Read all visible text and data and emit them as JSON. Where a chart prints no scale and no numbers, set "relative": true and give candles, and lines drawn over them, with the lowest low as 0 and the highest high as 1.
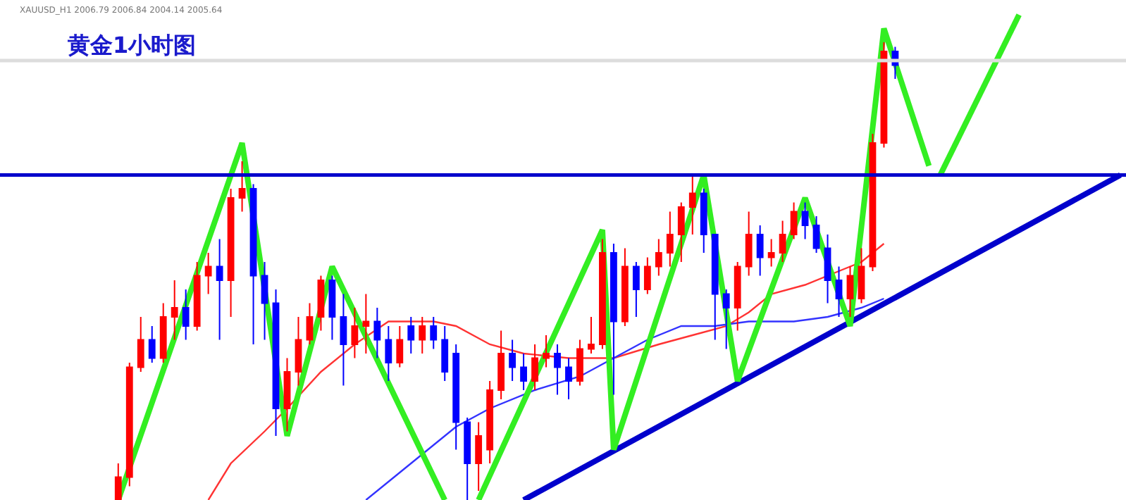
{
  "chart_data": {
    "type": "candlestick",
    "title": "黄金1小时图",
    "annotations": [
      "XAUUSD_H1 2006.79 2006.84 2004.14 2005.64"
    ],
    "relative": true,
    "categories": [
      null,
      null,
      null,
      null,
      null,
      null,
      null,
      null,
      null,
      null,
      null,
      null,
      null,
      null,
      null,
      null,
      null,
      null,
      null,
      null,
      null,
      null,
      null,
      null,
      null,
      null,
      null,
      null,
      null,
      null,
      null,
      null,
      null,
      null,
      null,
      null,
      null,
      null,
      null,
      null,
      null,
      null,
      null,
      null,
      null,
      null,
      null,
      null,
      null,
      null,
      null,
      null,
      null,
      null,
      null,
      null,
      null,
      null,
      null,
      null,
      null,
      null,
      null,
      null,
      null,
      null,
      null,
      null,
      null,
      null,
      null,
      null,
      null,
      null,
      null,
      null,
      null,
      null,
      null,
      null,
      null,
      null,
      null,
      null,
      null,
      null,
      null,
      null,
      null,
      null,
      null,
      null,
      null,
      null,
      null,
      null,
      null,
      null,
      null,
      null
    ],
    "colors": [
      null,
      null,
      null,
      null,
      null,
      null,
      null,
      null,
      null,
      null,
      "#ff0000",
      "#ff0000",
      "#ff0000",
      "#0000ff",
      "#ff0000",
      "#ff0000",
      "#0000ff",
      "#ff0000",
      "#ff0000",
      "#0000ff",
      "#ff0000",
      "#ff0000",
      "#0000ff",
      "#0000ff",
      "#0000ff",
      "#ff0000",
      "#ff0000",
      "#ff0000",
      "#ff0000",
      "#0000ff",
      "#0000ff",
      "#ff0000",
      "#ff0000",
      "#0000ff",
      "#0000ff",
      "#ff0000",
      "#0000ff",
      "#ff0000",
      "#0000ff",
      "#0000ff",
      "#0000ff",
      "#0000ff",
      "#ff0000",
      "#ff0000",
      "#ff0000",
      "#0000ff",
      "#0000ff",
      "#ff0000",
      "#ff0000",
      "#0000ff",
      "#0000ff",
      "#ff0000",
      "#ff0000",
      "#ff0000",
      "#0000ff",
      "#ff0000",
      "#0000ff",
      "#ff0000",
      "#ff0000",
      "#ff0000",
      "#ff0000",
      "#ff0000",
      "#0000ff",
      "#0000ff",
      "#0000ff",
      "#ff0000",
      "#ff0000",
      "#0000ff",
      "#ff0000",
      "#ff0000",
      "#ff0000",
      "#0000ff",
      "#0000ff",
      "#0000ff",
      "#0000ff",
      "#ff0000",
      "#ff0000",
      "#ff0000",
      "#ff0000",
      "#0000ff",
      null,
      null,
      null,
      null,
      null,
      null,
      null,
      null,
      null,
      null,
      null,
      null,
      null,
      null,
      null,
      null,
      null,
      null,
      null,
      null
    ],
    "ohlc": [
      null,
      null,
      null,
      null,
      null,
      null,
      null,
      null,
      null,
      null,
      [
        0,
        0.08,
        0,
        0.05
      ],
      [
        0.05,
        0.3,
        0.03,
        0.29
      ],
      [
        0.29,
        0.4,
        0.28,
        0.35
      ],
      [
        0.35,
        0.38,
        0.3,
        0.31
      ],
      [
        0.31,
        0.43,
        0.3,
        0.4
      ],
      [
        0.4,
        0.48,
        0.35,
        0.42
      ],
      [
        0.42,
        0.46,
        0.35,
        0.38
      ],
      [
        0.38,
        0.52,
        0.37,
        0.49
      ],
      [
        0.49,
        0.54,
        0.45,
        0.51
      ],
      [
        0.51,
        0.57,
        0.35,
        0.48
      ],
      [
        0.48,
        0.68,
        0.4,
        0.66
      ],
      [
        0.66,
        0.74,
        0.63,
        0.68
      ],
      [
        0.68,
        0.69,
        0.34,
        0.49
      ],
      [
        0.49,
        0.52,
        0.35,
        0.43
      ],
      [
        0.43,
        0.46,
        0.14,
        0.2
      ],
      [
        0.2,
        0.31,
        0.15,
        0.28
      ],
      [
        0.28,
        0.4,
        0.25,
        0.35
      ],
      [
        0.35,
        0.43,
        0.34,
        0.4
      ],
      [
        0.4,
        0.49,
        0.37,
        0.48
      ],
      [
        0.48,
        0.49,
        0.35,
        0.4
      ],
      [
        0.4,
        0.45,
        0.25,
        0.34
      ],
      [
        0.34,
        0.42,
        0.31,
        0.38
      ],
      [
        0.38,
        0.45,
        0.32,
        0.39
      ],
      [
        0.39,
        0.42,
        0.31,
        0.35
      ],
      [
        0.35,
        0.38,
        0.26,
        0.3
      ],
      [
        0.3,
        0.38,
        0.29,
        0.35
      ],
      [
        0.38,
        0.4,
        0.32,
        0.35
      ],
      [
        0.35,
        0.4,
        0.32,
        0.38
      ],
      [
        0.38,
        0.4,
        0.33,
        0.35
      ],
      [
        0.35,
        0.38,
        0.26,
        0.28
      ],
      [
        0.32,
        0.34,
        0.11,
        0.17
      ],
      [
        0.17,
        0.18,
        0,
        0.08
      ],
      [
        0.08,
        0.17,
        0.02,
        0.14
      ],
      [
        0.11,
        0.26,
        0.08,
        0.24
      ],
      [
        0.24,
        0.37,
        0.22,
        0.32
      ],
      [
        0.32,
        0.35,
        0.26,
        0.29
      ],
      [
        0.29,
        0.32,
        0.24,
        0.26
      ],
      [
        0.26,
        0.34,
        0.24,
        0.31
      ],
      [
        0.31,
        0.36,
        0.29,
        0.32
      ],
      [
        0.32,
        0.34,
        0.23,
        0.29
      ],
      [
        0.29,
        0.31,
        0.22,
        0.26
      ],
      [
        0.26,
        0.35,
        0.25,
        0.33
      ],
      [
        0.33,
        0.4,
        0.32,
        0.34
      ],
      [
        0.34,
        0.57,
        0.33,
        0.54
      ],
      [
        0.54,
        0.56,
        0.23,
        0.39
      ],
      [
        0.39,
        0.55,
        0.38,
        0.51
      ],
      [
        0.51,
        0.52,
        0.4,
        0.46
      ],
      [
        0.46,
        0.53,
        0.45,
        0.51
      ],
      [
        0.51,
        0.57,
        0.49,
        0.54
      ],
      [
        0.54,
        0.63,
        0.51,
        0.58
      ],
      [
        0.58,
        0.65,
        0.52,
        0.64
      ],
      [
        0.64,
        0.71,
        0.58,
        0.67
      ],
      [
        0.67,
        0.68,
        0.54,
        0.58
      ],
      [
        0.58,
        0.58,
        0.35,
        0.45
      ],
      [
        0.45,
        0.46,
        0.33,
        0.42
      ],
      [
        0.42,
        0.52,
        0.37,
        0.51
      ],
      [
        0.51,
        0.63,
        0.49,
        0.58
      ],
      [
        0.58,
        0.6,
        0.49,
        0.53
      ],
      [
        0.53,
        0.57,
        0.51,
        0.54
      ],
      [
        0.54,
        0.61,
        0.52,
        0.58
      ],
      [
        0.58,
        0.65,
        0.57,
        0.63
      ],
      [
        0.63,
        0.65,
        0.57,
        0.6
      ],
      [
        0.6,
        0.62,
        0.54,
        0.55
      ],
      [
        0.55,
        0.58,
        0.43,
        0.48
      ],
      [
        0.48,
        0.51,
        0.4,
        0.44
      ],
      [
        0.44,
        0.51,
        0.4,
        0.49
      ],
      [
        0.44,
        0.55,
        0.43,
        0.51
      ],
      [
        0.51,
        0.8,
        0.5,
        0.78
      ],
      [
        0.78,
        1,
        0.77,
        0.98
      ],
      [
        0.98,
        0.99,
        0.92,
        0.95
      ],
      null,
      null,
      null,
      null,
      null,
      null,
      null,
      null,
      null,
      null,
      null,
      null,
      null,
      null,
      null,
      null,
      null,
      null,
      null,
      null
    ],
    "ref_lines": [
      {
        "axis": "y",
        "value": 0.71,
        "color": "#0000cc"
      },
      {
        "axis": "y",
        "value": 0.96,
        "color": "#dddddd"
      }
    ],
    "series": [
      {
        "type": "line",
        "color": "#ff3333",
        "values": [
          null,
          null,
          null,
          null,
          null,
          null,
          null,
          null,
          null,
          null,
          null,
          null,
          null,
          null,
          null,
          null,
          null,
          null,
          0,
          null,
          0.08,
          null,
          null,
          0.15,
          null,
          0.2,
          null,
          null,
          0.28,
          null,
          null,
          0.34,
          null,
          null,
          0.39,
          null,
          null,
          null,
          0.39,
          null,
          0.38,
          null,
          null,
          0.34,
          null,
          null,
          0.32,
          null,
          null,
          null,
          0.31,
          null,
          null,
          null,
          0.31,
          null,
          null,
          null,
          0.34,
          null,
          null,
          0.36,
          null,
          null,
          0.38,
          null,
          0.41,
          null,
          0.45,
          null,
          null,
          0.47,
          null,
          null,
          0.5,
          null,
          0.52,
          null,
          0.56,
          null,
          null,
          null,
          null,
          null,
          null,
          null,
          null,
          null,
          null,
          null,
          null,
          null,
          null,
          null,
          null,
          null,
          null,
          null,
          null,
          null
        ]
      },
      {
        "type": "line",
        "color": "#3333ff",
        "values": [
          null,
          null,
          null,
          null,
          null,
          null,
          null,
          null,
          null,
          null,
          null,
          null,
          null,
          null,
          null,
          null,
          null,
          null,
          null,
          null,
          null,
          null,
          null,
          null,
          null,
          null,
          null,
          null,
          null,
          null,
          null,
          null,
          0,
          null,
          null,
          0.06,
          null,
          null,
          0.12,
          null,
          0.16,
          null,
          null,
          0.2,
          null,
          null,
          null,
          0.24,
          null,
          null,
          null,
          0.27,
          null,
          null,
          0.31,
          null,
          null,
          0.35,
          null,
          null,
          0.38,
          null,
          null,
          0.38,
          null,
          null,
          0.39,
          null,
          null,
          null,
          0.39,
          null,
          null,
          0.4,
          null,
          null,
          0.42,
          null,
          0.44,
          null,
          null,
          null,
          null,
          null,
          null,
          null,
          null,
          null,
          null,
          null,
          null,
          null,
          null,
          null,
          null,
          null,
          null,
          null,
          null,
          null
        ]
      },
      {
        "type": "line",
        "color": "#0000cc",
        "values": [
          null,
          null,
          null,
          null,
          null,
          null,
          null,
          null,
          null,
          null,
          null,
          null,
          null,
          null,
          null,
          null,
          null,
          null,
          null,
          null,
          null,
          null,
          null,
          null,
          null,
          null,
          null,
          null,
          null,
          null,
          null,
          null,
          null,
          null,
          null,
          null,
          null,
          null,
          null,
          null,
          null,
          null,
          null,
          null,
          null,
          null,
          0,
          null,
          null,
          null,
          null,
          null,
          null,
          null,
          null,
          null,
          null,
          null,
          null,
          null,
          null,
          null,
          null,
          null,
          null,
          null,
          null,
          null,
          null,
          null,
          null,
          null,
          null,
          null,
          null,
          null,
          null,
          null,
          null,
          null,
          null,
          null,
          null,
          null,
          null,
          null,
          null,
          null,
          null,
          null,
          null,
          null,
          null,
          null,
          null,
          null,
          null,
          null,
          null,
          0.71
        ]
      },
      {
        "type": "line",
        "color": "#33ee22",
        "values": [
          null,
          null,
          null,
          null,
          null,
          null,
          null,
          null,
          null,
          null,
          0,
          null,
          null,
          null,
          null,
          null,
          null,
          null,
          null,
          null,
          null,
          0.78,
          null,
          null,
          null,
          0.14,
          null,
          null,
          null,
          0.51,
          null,
          null,
          null,
          null,
          null,
          null,
          null,
          null,
          null,
          0,
          null,
          null,
          null,
          null,
          null,
          null,
          null,
          null,
          null,
          null,
          null,
          null,
          null,
          null,
          null,
          null,
          null,
          null,
          null,
          null,
          null,
          null,
          null,
          null,
          null,
          null,
          null,
          null,
          null,
          null,
          null,
          null,
          null,
          null,
          null,
          null,
          null,
          null,
          null,
          null,
          null,
          null,
          null,
          null,
          null,
          null,
          null,
          null,
          null,
          null,
          null,
          null,
          null,
          null,
          null,
          null,
          null,
          null,
          null,
          null
        ]
      },
      {
        "type": "line",
        "color": "#33ee22",
        "values": [
          null,
          null,
          null,
          null,
          null,
          null,
          null,
          null,
          null,
          null,
          null,
          null,
          null,
          null,
          null,
          null,
          null,
          null,
          null,
          null,
          null,
          null,
          null,
          null,
          null,
          null,
          null,
          null,
          null,
          null,
          null,
          null,
          null,
          null,
          null,
          null,
          null,
          null,
          null,
          null,
          null,
          null,
          0,
          null,
          null,
          null,
          null,
          null,
          null,
          null,
          null,
          null,
          null,
          0.59,
          0.11,
          null,
          null,
          null,
          null,
          null,
          null,
          null,
          0.71,
          null,
          null,
          0.26,
          null,
          null,
          null,
          null,
          null,
          0.66,
          null,
          null,
          null,
          0.38,
          null,
          null,
          1.03,
          null,
          null,
          null,
          0.73,
          null,
          null,
          null,
          null,
          null,
          null,
          null,
          null,
          null,
          null,
          null,
          null,
          null,
          null,
          null,
          null,
          null
        ]
      },
      {
        "type": "line",
        "color": "#33ee22",
        "values": [
          null,
          null,
          null,
          null,
          null,
          null,
          null,
          null,
          null,
          null,
          null,
          null,
          null,
          null,
          null,
          null,
          null,
          null,
          null,
          null,
          null,
          null,
          null,
          null,
          null,
          null,
          null,
          null,
          null,
          null,
          null,
          null,
          null,
          null,
          null,
          null,
          null,
          null,
          null,
          null,
          null,
          null,
          null,
          null,
          null,
          null,
          null,
          null,
          null,
          null,
          null,
          null,
          null,
          null,
          null,
          null,
          null,
          null,
          null,
          null,
          null,
          null,
          null,
          null,
          null,
          null,
          null,
          null,
          null,
          null,
          null,
          null,
          null,
          null,
          null,
          null,
          null,
          null,
          null,
          null,
          null,
          null,
          null,
          0.71,
          null,
          null,
          null,
          null,
          null,
          null,
          1.06,
          null,
          null,
          null,
          null,
          null,
          null,
          null,
          null,
          null
        ]
      }
    ]
  }
}
